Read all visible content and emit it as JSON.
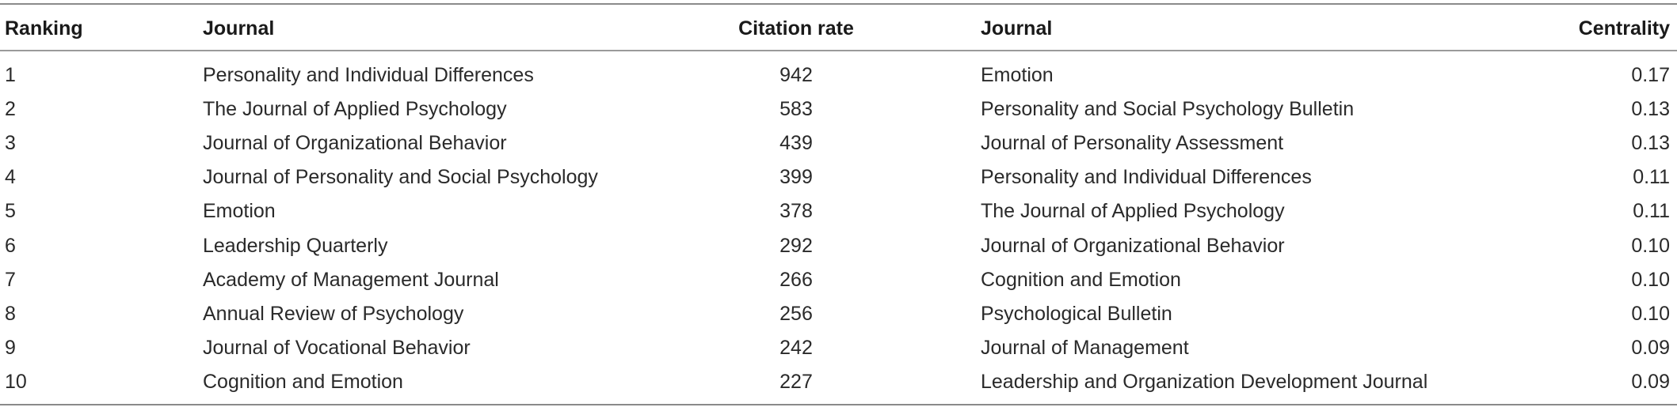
{
  "table": {
    "headers": {
      "ranking": "Ranking",
      "journal1": "Journal",
      "citation_rate": "Citation rate",
      "journal2": "Journal",
      "centrality": "Centrality"
    },
    "rows": [
      {
        "ranking": "1",
        "journal1": "Personality and Individual Differences",
        "citation_rate": "942",
        "journal2": "Emotion",
        "centrality": "0.17"
      },
      {
        "ranking": "2",
        "journal1": "The Journal of Applied Psychology",
        "citation_rate": "583",
        "journal2": "Personality and Social Psychology Bulletin",
        "centrality": "0.13"
      },
      {
        "ranking": "3",
        "journal1": "Journal of Organizational Behavior",
        "citation_rate": "439",
        "journal2": "Journal of Personality Assessment",
        "centrality": "0.13"
      },
      {
        "ranking": "4",
        "journal1": "Journal of Personality and Social Psychology",
        "citation_rate": "399",
        "journal2": "Personality and Individual Differences",
        "centrality": "0.11"
      },
      {
        "ranking": "5",
        "journal1": "Emotion",
        "citation_rate": "378",
        "journal2": "The Journal of Applied Psychology",
        "centrality": "0.11"
      },
      {
        "ranking": "6",
        "journal1": "Leadership Quarterly",
        "citation_rate": "292",
        "journal2": "Journal of Organizational Behavior",
        "centrality": "0.10"
      },
      {
        "ranking": "7",
        "journal1": "Academy of Management Journal",
        "citation_rate": "266",
        "journal2": "Cognition and Emotion",
        "centrality": "0.10"
      },
      {
        "ranking": "8",
        "journal1": "Annual Review of Psychology",
        "citation_rate": "256",
        "journal2": "Psychological Bulletin",
        "centrality": "0.10"
      },
      {
        "ranking": "9",
        "journal1": "Journal of Vocational Behavior",
        "citation_rate": "242",
        "journal2": "Journal of Management",
        "centrality": "0.09"
      },
      {
        "ranking": "10",
        "journal1": "Cognition and Emotion",
        "citation_rate": "227",
        "journal2": "Leadership and Organization Development Journal",
        "centrality": "0.09"
      }
    ]
  }
}
